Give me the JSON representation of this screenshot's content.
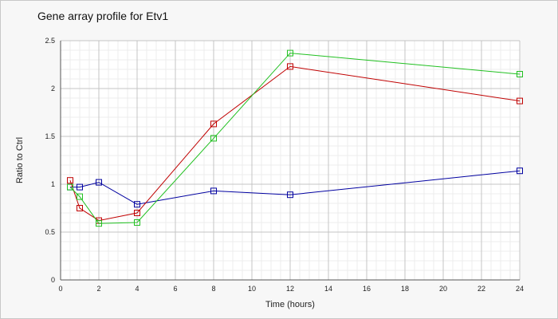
{
  "chart_data": {
    "type": "line",
    "title": "Gene array profile for Etv1",
    "xlabel": "Time (hours)",
    "ylabel": "Ratio to Ctrl",
    "xlim": [
      0,
      24
    ],
    "ylim": [
      0,
      2.5
    ],
    "xticks": [
      0,
      2,
      4,
      6,
      8,
      10,
      12,
      14,
      16,
      18,
      20,
      22,
      24
    ],
    "yticks": [
      {
        "value": 0,
        "label": "0"
      },
      {
        "value": 0.5,
        "label": "0.5"
      },
      {
        "value": 1,
        "label": "1"
      },
      {
        "value": 1.5,
        "label": "1.5"
      },
      {
        "value": 2,
        "label": "2"
      },
      {
        "value": 2.5,
        "label": "2.5"
      }
    ],
    "grid": true,
    "legend": "none",
    "marker": "open-square",
    "series": [
      {
        "color": "#0000a0",
        "points": [
          [
            0.5,
            0.97
          ],
          [
            1,
            0.97
          ],
          [
            2,
            1.02
          ],
          [
            4,
            0.79
          ],
          [
            8,
            0.93
          ],
          [
            12,
            0.89
          ],
          [
            24,
            1.14
          ]
        ]
      },
      {
        "color": "#c00000",
        "points": [
          [
            0.5,
            1.04
          ],
          [
            1,
            0.75
          ],
          [
            2,
            0.62
          ],
          [
            4,
            0.7
          ],
          [
            8,
            1.63
          ],
          [
            12,
            2.23
          ],
          [
            24,
            1.87
          ]
        ]
      },
      {
        "color": "#20c020",
        "points": [
          [
            0.5,
            0.97
          ],
          [
            1,
            0.87
          ],
          [
            2,
            0.59
          ],
          [
            4,
            0.6
          ],
          [
            8,
            1.48
          ],
          [
            12,
            2.37
          ],
          [
            24,
            2.15
          ]
        ]
      }
    ]
  }
}
